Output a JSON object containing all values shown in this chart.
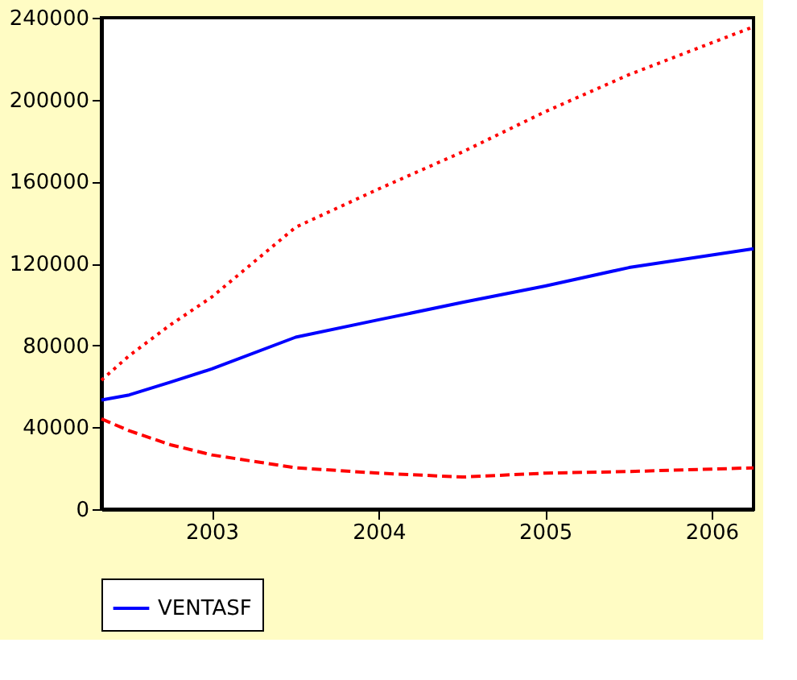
{
  "chart_data": {
    "type": "line",
    "x": [
      "2002-11",
      "2003-01",
      "2003-04",
      "2003-07",
      "2004-01",
      "2004-07",
      "2005-01",
      "2005-07",
      "2006-01",
      "2006-10"
    ],
    "series": [
      {
        "name": "VENTASF",
        "color": "#0000ff",
        "line_style": "solid",
        "values": [
          53300,
          55800,
          62000,
          68500,
          84000,
          92500,
          101000,
          109000,
          118000,
          127200
        ]
      },
      {
        "color": "#ff0000",
        "line_style": "dotted",
        "values": [
          63000,
          75000,
          90000,
          103600,
          137700,
          156400,
          174500,
          194100,
          212200,
          235600
        ]
      },
      {
        "color": "#ff0000",
        "line_style": "dashed",
        "values": [
          44100,
          38300,
          31500,
          26500,
          20200,
          17600,
          15700,
          17600,
          18400,
          20200
        ]
      }
    ],
    "xlim": [
      "2002-11",
      "2006-10"
    ],
    "xticks": [
      {
        "value": "2003-07",
        "label": "2003"
      },
      {
        "value": "2004-07",
        "label": "2004"
      },
      {
        "value": "2005-07",
        "label": "2005"
      },
      {
        "value": "2006-07",
        "label": "2006"
      }
    ],
    "ylim": [
      0,
      240000
    ],
    "yticks": [
      0,
      40000,
      80000,
      120000,
      160000,
      200000,
      240000
    ],
    "grid": false,
    "legend": "bottom",
    "marker": "none"
  }
}
